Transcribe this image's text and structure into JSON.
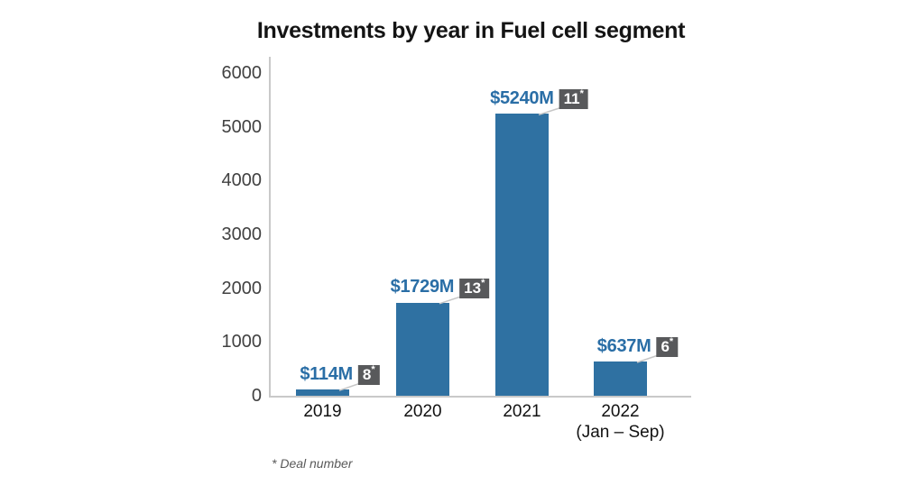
{
  "title": "Investments by year in Fuel cell segment",
  "footnote": "* Deal number",
  "asterisk_marker": "*",
  "colors": {
    "bar": "#2F71A2",
    "value_label": "#2A6EA6",
    "badge_bg": "#58595B",
    "badge_text": "#FFFFFF",
    "axis_line": "#C9C9C9",
    "y_tick": "#414141",
    "x_tick": "#121212",
    "connector": "#C6C6C6",
    "title": "#141414",
    "footnote": "#595959",
    "background": "#FFFFFF"
  },
  "chart_data": {
    "type": "bar",
    "title": "Investments by year in Fuel cell segment",
    "xlabel": "",
    "ylabel": "",
    "ylim": [
      0,
      6000
    ],
    "yticks": [
      0,
      1000,
      2000,
      3000,
      4000,
      5000,
      6000
    ],
    "grid": false,
    "legend": false,
    "categories": [
      {
        "label": "2019",
        "sublabel": ""
      },
      {
        "label": "2020",
        "sublabel": ""
      },
      {
        "label": "2021",
        "sublabel": ""
      },
      {
        "label": "2022",
        "sublabel": "(Jan – Sep)"
      }
    ],
    "series": [
      {
        "name": "Investment amount ($M)",
        "values": [
          114,
          1729,
          5240,
          637
        ],
        "value_labels": [
          "$114M",
          "$1729M",
          "$5240M",
          "$637M"
        ]
      },
      {
        "name": "Deal number",
        "values": [
          8,
          13,
          11,
          6
        ],
        "value_labels": [
          "8*",
          "13*",
          "11*",
          "6*"
        ]
      }
    ],
    "footnote": "* Deal number"
  }
}
